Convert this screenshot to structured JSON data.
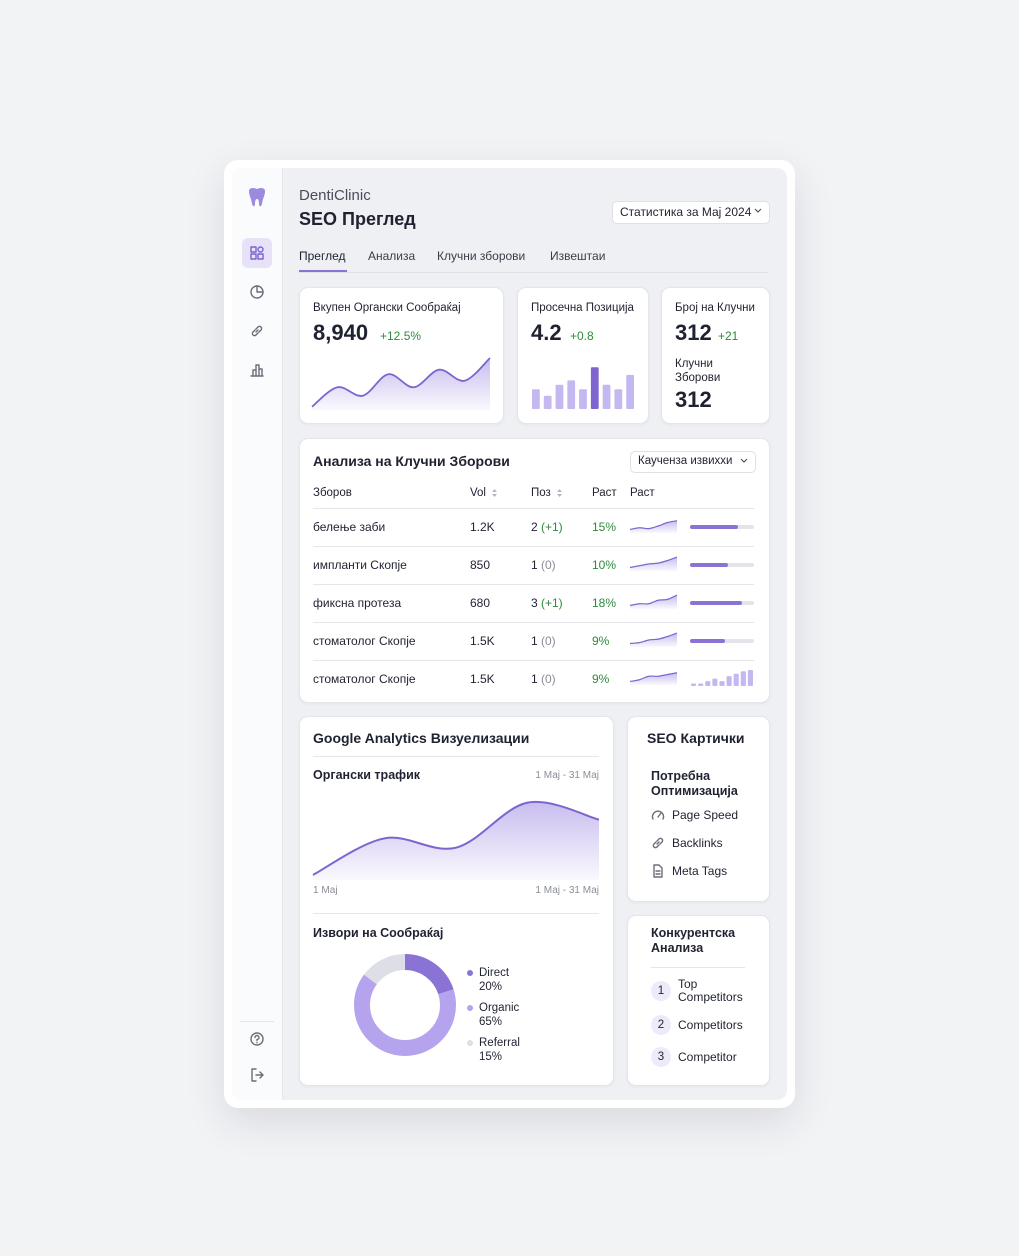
{
  "brand": "DentiClinic",
  "page_title": "SEO Преглед",
  "period_button": "Статистика за Мај 2024",
  "tabs": [
    "Преглед",
    "Анализа",
    "Клучни зборови",
    "Извештаи"
  ],
  "kpis": {
    "traffic": {
      "label": "Вкупен Органски Сообраќај",
      "value": "8,940",
      "change": "+12.5%",
      "trend": [
        5,
        35,
        22,
        55,
        35,
        62,
        45,
        80
      ]
    },
    "position": {
      "label": "Просечна Позиција",
      "value": "4.2",
      "change": "+0.8",
      "bars": [
        18,
        12,
        22,
        26,
        18,
        38,
        22,
        18,
        31
      ],
      "highlight_index": 5
    },
    "keywords": {
      "label": "Број на Клучни",
      "value": "312",
      "change": "+21",
      "sub_label": "Клучни Зборови",
      "sub_value": "312"
    }
  },
  "keywords": {
    "title": "Анализа на Клучни Зборови",
    "filter": "Каученза извихxи",
    "columns": [
      "Зборов",
      "Vol",
      "Поз",
      "Раст",
      "Раст"
    ],
    "rows": [
      {
        "keyword": "белење заби",
        "vol": "1.2K",
        "pos": "2",
        "pos_change": "(+1)",
        "growth": "15%",
        "trend": [
          2,
          3,
          2.5,
          4,
          6,
          7
        ],
        "progress": 75
      },
      {
        "keyword": "импланти Скопје",
        "vol": "850",
        "pos": "1",
        "pos_change": "(0)",
        "growth": "10%",
        "trend": [
          2,
          3,
          4,
          4.5,
          6,
          8
        ],
        "progress": 60
      },
      {
        "keyword": "фиксна протеза",
        "vol": "680",
        "pos": "3",
        "pos_change": "(+1)",
        "growth": "18%",
        "trend": [
          2,
          3,
          3,
          5,
          5.5,
          8
        ],
        "progress": 82
      },
      {
        "keyword": "стоматолог Скопје",
        "vol": "1.5K",
        "pos": "1",
        "pos_change": "(0)",
        "growth": "9%",
        "trend": [
          2,
          2.5,
          4,
          4.5,
          6,
          8
        ],
        "progress": 55
      },
      {
        "keyword": "стоматолог Скопје",
        "vol": "1.5K",
        "pos": "1",
        "pos_change": "(0)",
        "growth": "9%",
        "trend": [
          2,
          3,
          5,
          5,
          6,
          7
        ],
        "bars": [
          2,
          2,
          4,
          6,
          4,
          8,
          10,
          12,
          13
        ]
      }
    ]
  },
  "analytics": {
    "title": "Google Analytics Визуелизации",
    "chart_title": "Органски трафик",
    "range": "1 Мај - 31 Мај",
    "x_start": "1 Мај",
    "x_end": "1 Мај - 31 Мај",
    "values": [
      6,
      49,
      38,
      91,
      71
    ],
    "sources_title": "Извори на Сообраќај",
    "sources": {
      "names": [
        "Direct",
        "Organic",
        "Referral"
      ],
      "values": [
        20,
        65,
        15
      ],
      "value_labels": [
        "20%",
        "65%",
        "15%"
      ],
      "colors": [
        "#8b73d6",
        "#b5a3ee",
        "#dedfe6"
      ]
    }
  },
  "seo_cards": {
    "title": "SEO Картички",
    "subtitle": "Потребна Оптимизација",
    "items": [
      "Page Speed",
      "Backlinks",
      "Meta Tags"
    ]
  },
  "competitors": {
    "title": "Конкурентска Анализа",
    "items": [
      {
        "number": 1,
        "label": "Top Competitors"
      },
      {
        "number": 2,
        "label": "Competitors"
      },
      {
        "number": 3,
        "label": "Competitor"
      }
    ]
  }
}
